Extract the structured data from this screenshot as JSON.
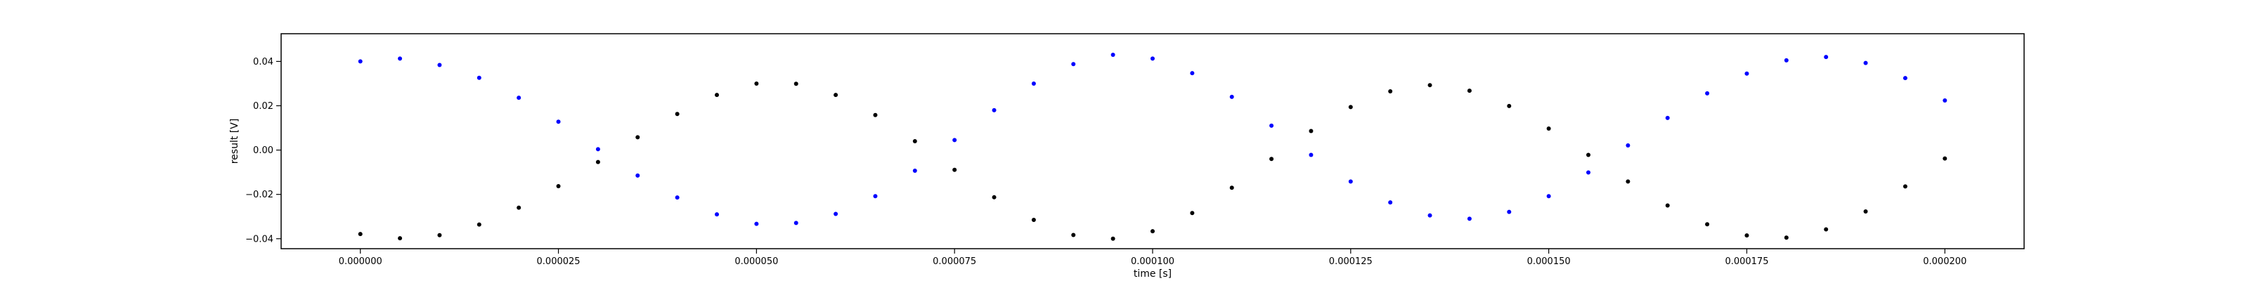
{
  "chart_data": {
    "type": "scatter",
    "title": "",
    "xlabel": "time [s]",
    "ylabel": "result [V]",
    "xlim": [
      -1e-05,
      0.00021
    ],
    "ylim": [
      -0.0445,
      0.0525
    ],
    "grid": false,
    "xticks": [
      0,
      2.5e-05,
      5e-05,
      7.5e-05,
      0.0001,
      0.000125,
      0.00015,
      0.000175,
      0.0002
    ],
    "xtick_labels": [
      "0.000000",
      "0.000025",
      "0.000050",
      "0.000075",
      "0.000100",
      "0.000125",
      "0.000150",
      "0.000175",
      "0.000200"
    ],
    "yticks": [
      -0.04,
      -0.02,
      0.0,
      0.02,
      0.04
    ],
    "ytick_labels": [
      "−0.04",
      "−0.02",
      "0.00",
      "0.02",
      "0.04"
    ],
    "series": [
      {
        "color": "#000000",
        "marker": "dot",
        "points": [
          [
            0.0,
            -0.0379
          ],
          [
            5e-06,
            -0.0398
          ],
          [
            1e-05,
            -0.0384
          ],
          [
            1.5e-05,
            -0.0336
          ],
          [
            2e-05,
            -0.026
          ],
          [
            2.5e-05,
            -0.0163
          ],
          [
            3e-05,
            -0.0054
          ],
          [
            3.5e-05,
            0.0058
          ],
          [
            4e-05,
            0.0163
          ],
          [
            4.5e-05,
            0.0249
          ],
          [
            5e-05,
            0.03
          ],
          [
            5.5e-05,
            0.0299
          ],
          [
            6e-05,
            0.0249
          ],
          [
            6.5e-05,
            0.0158
          ],
          [
            7e-05,
            0.004
          ],
          [
            7.5e-05,
            -0.0089
          ],
          [
            8e-05,
            -0.0213
          ],
          [
            8.5e-05,
            -0.0315
          ],
          [
            9e-05,
            -0.0383
          ],
          [
            9.5e-05,
            -0.04
          ],
          [
            0.0001,
            -0.0366
          ],
          [
            0.000105,
            -0.0284
          ],
          [
            0.00011,
            -0.017
          ],
          [
            0.000115,
            -0.004
          ],
          [
            0.00012,
            0.0086
          ],
          [
            0.000125,
            0.0194
          ],
          [
            0.00013,
            0.0265
          ],
          [
            0.000135,
            0.0293
          ],
          [
            0.00014,
            0.0268
          ],
          [
            0.000145,
            0.0199
          ],
          [
            0.00015,
            0.0097
          ],
          [
            0.000155,
            -0.0022
          ],
          [
            0.00016,
            -0.0142
          ],
          [
            0.000165,
            -0.025
          ],
          [
            0.00017,
            -0.0335
          ],
          [
            0.000175,
            -0.0385
          ],
          [
            0.00018,
            -0.0395
          ],
          [
            0.000185,
            -0.0358
          ],
          [
            0.00019,
            -0.0277
          ],
          [
            0.000195,
            -0.0164
          ],
          [
            0.0002,
            -0.0038
          ]
        ]
      },
      {
        "color": "#0000ff",
        "marker": "dot",
        "points": [
          [
            0.0,
            0.04
          ],
          [
            5e-06,
            0.0413
          ],
          [
            1e-05,
            0.0384
          ],
          [
            1.5e-05,
            0.0326
          ],
          [
            2e-05,
            0.0236
          ],
          [
            2.5e-05,
            0.0128
          ],
          [
            3e-05,
            0.0004
          ],
          [
            3.5e-05,
            -0.0115
          ],
          [
            4e-05,
            -0.0214
          ],
          [
            4.5e-05,
            -0.029
          ],
          [
            5e-05,
            -0.0333
          ],
          [
            5.5e-05,
            -0.0329
          ],
          [
            6e-05,
            -0.0288
          ],
          [
            6.5e-05,
            -0.0208
          ],
          [
            7e-05,
            -0.0093
          ],
          [
            7.5e-05,
            0.0045
          ],
          [
            8e-05,
            0.018
          ],
          [
            8.5e-05,
            0.03
          ],
          [
            9e-05,
            0.0388
          ],
          [
            9.5e-05,
            0.043
          ],
          [
            0.0001,
            0.0413
          ],
          [
            0.000105,
            0.0347
          ],
          [
            0.00011,
            0.024
          ],
          [
            0.000115,
            0.011
          ],
          [
            0.00012,
            -0.0022
          ],
          [
            0.000125,
            -0.0142
          ],
          [
            0.00013,
            -0.0236
          ],
          [
            0.000135,
            -0.0295
          ],
          [
            0.00014,
            -0.031
          ],
          [
            0.000145,
            -0.0279
          ],
          [
            0.00015,
            -0.0208
          ],
          [
            0.000155,
            -0.0101
          ],
          [
            0.00016,
            0.0021
          ],
          [
            0.000165,
            0.0145
          ],
          [
            0.00017,
            0.0256
          ],
          [
            0.000175,
            0.0345
          ],
          [
            0.00018,
            0.0405
          ],
          [
            0.000185,
            0.042
          ],
          [
            0.00019,
            0.0393
          ],
          [
            0.000195,
            0.0325
          ],
          [
            0.0002,
            0.0224
          ]
        ]
      }
    ]
  }
}
